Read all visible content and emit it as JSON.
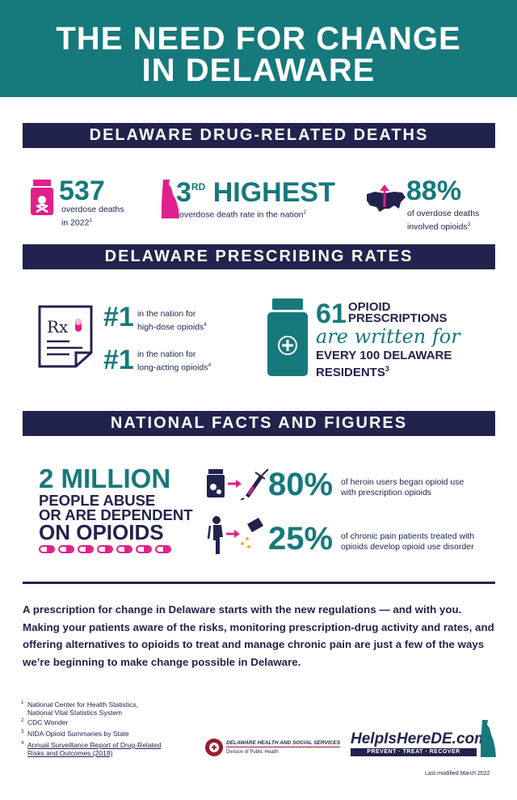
{
  "header": {
    "title_line1": "THE NEED FOR CHANGE",
    "title_line2": "IN DELAWARE"
  },
  "deaths": {
    "heading": "DELAWARE DRUG-RELATED DEATHS",
    "stat1": {
      "value": "537",
      "label_line1": "overdose deaths",
      "label_line2": "in 2022",
      "ref": "1"
    },
    "stat2": {
      "value": "3",
      "suffix": "RD",
      "value_word": "HIGHEST",
      "label": "overdose death rate in the nation",
      "ref": "2"
    },
    "stat3": {
      "value": "88%",
      "label_line1": "of overdose deaths",
      "label_line2": "involved opioids",
      "ref": "3"
    }
  },
  "prescribing": {
    "heading": "DELAWARE PRESCRIBING RATES",
    "rank1": {
      "value": "#1",
      "label_line1": "in the nation for",
      "label_line2": "high-dose opioids",
      "ref": "4"
    },
    "rank2": {
      "value": "#1",
      "label_line1": "in the nation for",
      "label_line2": "long-acting opioids",
      "ref": "4"
    },
    "rx_symbol": "Rx",
    "scripts": {
      "value": "61",
      "word1": "OPIOID",
      "word2": "PRESCRIPTIONS",
      "script_text": "are written for",
      "line3": "EVERY 100 DELAWARE",
      "line4": "RESIDENTS",
      "ref": "3"
    }
  },
  "national": {
    "heading": "NATIONAL FACTS AND FIGURES",
    "million": {
      "line1": "2 MILLION",
      "line2": "PEOPLE ABUSE",
      "line3": "OR ARE DEPENDENT",
      "line4": "ON OPIOIDS"
    },
    "fact1": {
      "value": "80%",
      "label_line1": "of heroin users began opioid use",
      "label_line2": "with prescription opioids"
    },
    "fact2": {
      "value": "25%",
      "label_line1": "of chronic pain patients treated with",
      "label_line2": "opioids develop opioid use disorder"
    }
  },
  "paragraph": "A prescription for change in Delaware starts with the new regulations — and with you. Making your patients aware of the risks, monitoring prescription-drug activity and rates, and offering alternatives to opioids to treat and manage chronic pain are just a few of the ways we’re beginning to make change possible in Delaware.",
  "footnotes": [
    {
      "num": "1",
      "line1": "National Center for Health Statistics,",
      "line2": "National Vital Statistics System"
    },
    {
      "num": "2",
      "line1": "CDC Wonder",
      "line2": ""
    },
    {
      "num": "3",
      "line1": "NIDA Opioid Summaries by State",
      "line2": ""
    },
    {
      "num": "4",
      "line1": "Annual Surveillance Report of Drug-Related",
      "line2": "Risks and Outcomes (2019)"
    }
  ],
  "dhss": {
    "name": "DELAWARE HEALTH AND SOCIAL SERVICES",
    "division": "Division of Public Health"
  },
  "brand": {
    "site": "HelpIsHereDE.com",
    "tagline": "PREVENT · TREAT · RECOVER"
  },
  "modified": "Last modified March 2022",
  "colors": {
    "teal": "#16797b",
    "navy": "#22234d",
    "magenta": "#e0208a"
  }
}
